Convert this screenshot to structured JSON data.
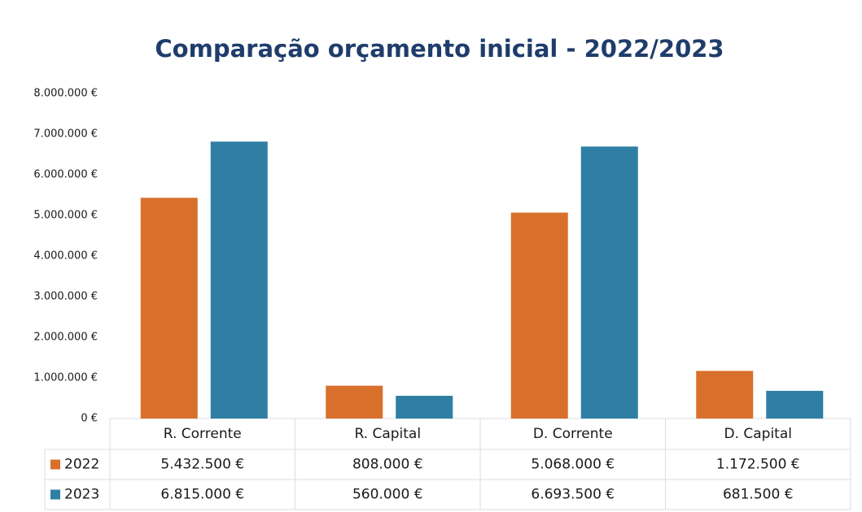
{
  "chart_data": {
    "type": "bar",
    "title": "Comparação orçamento inicial - 2022/2023",
    "categories": [
      "R. Corrente",
      "R. Capital",
      "D. Corrente",
      "D. Capital"
    ],
    "series": [
      {
        "name": "2022",
        "color": "#d8702c",
        "values": [
          5432500,
          808000,
          5068000,
          1172500
        ],
        "value_labels": [
          "5.432.500 €",
          "808.000 €",
          "5.068.000 €",
          "1.172.500 €"
        ]
      },
      {
        "name": "2023",
        "color": "#2f7fa4",
        "values": [
          6815000,
          560000,
          6693500,
          681500
        ],
        "value_labels": [
          "6.815.000 €",
          "560.000 €",
          "6.693.500 €",
          "681.500 €"
        ]
      }
    ],
    "ylim": [
      0,
      8000000
    ],
    "yticks": [
      {
        "value": 0,
        "label": "0 €"
      },
      {
        "value": 1000000,
        "label": "1.000.000 €"
      },
      {
        "value": 2000000,
        "label": "2.000.000 €"
      },
      {
        "value": 3000000,
        "label": "3.000.000 €"
      },
      {
        "value": 4000000,
        "label": "4.000.000 €"
      },
      {
        "value": 5000000,
        "label": "5.000.000 €"
      },
      {
        "value": 6000000,
        "label": "6.000.000 €"
      },
      {
        "value": 7000000,
        "label": "7.000.000 €"
      },
      {
        "value": 8000000,
        "label": "8.000.000 €"
      }
    ],
    "grid": false
  }
}
